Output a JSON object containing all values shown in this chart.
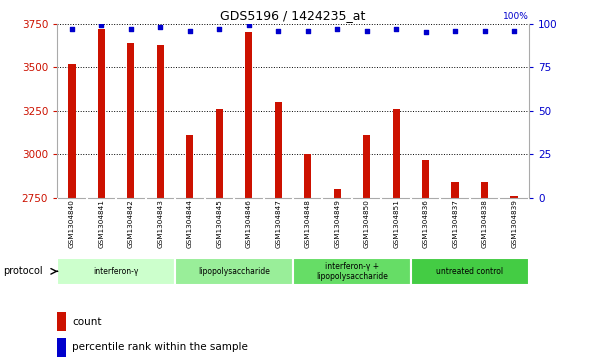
{
  "title": "GDS5196 / 1424235_at",
  "samples": [
    "GSM1304840",
    "GSM1304841",
    "GSM1304842",
    "GSM1304843",
    "GSM1304844",
    "GSM1304845",
    "GSM1304846",
    "GSM1304847",
    "GSM1304848",
    "GSM1304849",
    "GSM1304850",
    "GSM1304851",
    "GSM1304836",
    "GSM1304837",
    "GSM1304838",
    "GSM1304839"
  ],
  "counts": [
    3520,
    3720,
    3640,
    3630,
    3110,
    3260,
    3700,
    3300,
    3000,
    2800,
    3110,
    3260,
    2970,
    2840,
    2840,
    2760
  ],
  "percentile_ranks": [
    97,
    99,
    97,
    98,
    96,
    97,
    99,
    96,
    96,
    97,
    96,
    97,
    95,
    96,
    96,
    96
  ],
  "ylim_left": [
    2750,
    3750
  ],
  "ylim_right": [
    0,
    100
  ],
  "yticks_left": [
    2750,
    3000,
    3250,
    3500,
    3750
  ],
  "yticks_right": [
    0,
    25,
    50,
    75,
    100
  ],
  "bar_color": "#cc1100",
  "dot_color": "#0000cc",
  "protocols": [
    {
      "label": "interferon-γ",
      "start": 0,
      "end": 4,
      "color": "#ccffcc"
    },
    {
      "label": "lipopolysaccharide",
      "start": 4,
      "end": 8,
      "color": "#99ee99"
    },
    {
      "label": "interferon-γ +\nlipopolysaccharide",
      "start": 8,
      "end": 12,
      "color": "#66dd66"
    },
    {
      "label": "untreated control",
      "start": 12,
      "end": 16,
      "color": "#44cc44"
    }
  ],
  "protocol_label": "protocol",
  "legend_count_label": "count",
  "legend_percentile_label": "percentile rank within the sample",
  "background_color": "#ffffff",
  "plot_bg_color": "#ffffff",
  "grid_color": "#000000",
  "tick_label_color_left": "#cc1100",
  "tick_label_color_right": "#0000cc",
  "xticklabel_bg": "#cccccc",
  "bar_width": 0.25,
  "base_value": 2750
}
